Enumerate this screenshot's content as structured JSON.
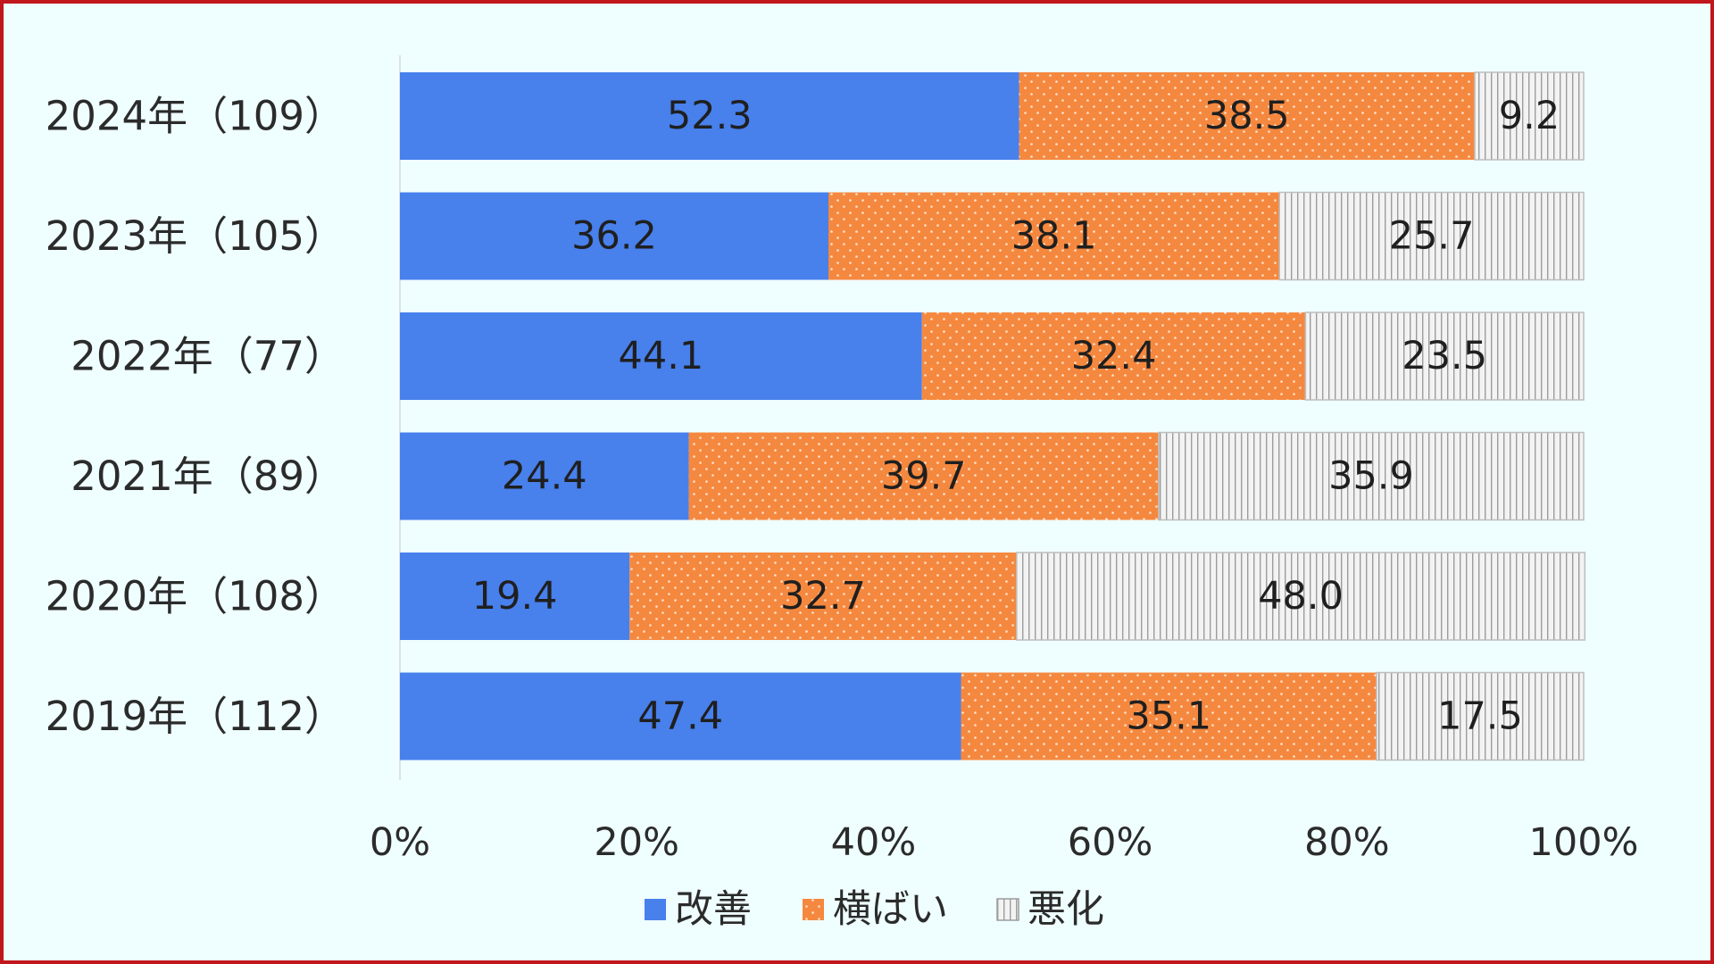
{
  "chart_data": {
    "type": "bar",
    "orientation": "horizontal",
    "stacked": "percent",
    "categories": [
      "2024年（109）",
      "2023年（105）",
      "2022年（77）",
      "2021年（89）",
      "2020年（108）",
      "2019年（112）"
    ],
    "series": [
      {
        "name": "改善",
        "values": [
          52.3,
          36.2,
          44.1,
          24.4,
          19.4,
          47.4
        ],
        "color": "#4880ec",
        "pattern": "solid"
      },
      {
        "name": "横ばい",
        "values": [
          38.5,
          38.1,
          32.4,
          39.7,
          32.7,
          35.1
        ],
        "color": "#f5883f",
        "pattern": "dots"
      },
      {
        "name": "悪化",
        "values": [
          9.2,
          25.7,
          23.5,
          35.9,
          48.0,
          17.5
        ],
        "color": "#f2f2f2",
        "pattern": "vertical-lines"
      }
    ],
    "xticks": [
      "0%",
      "20%",
      "40%",
      "60%",
      "80%",
      "100%"
    ],
    "xlim": [
      0,
      100
    ],
    "legend_position": "bottom",
    "grid": false
  }
}
